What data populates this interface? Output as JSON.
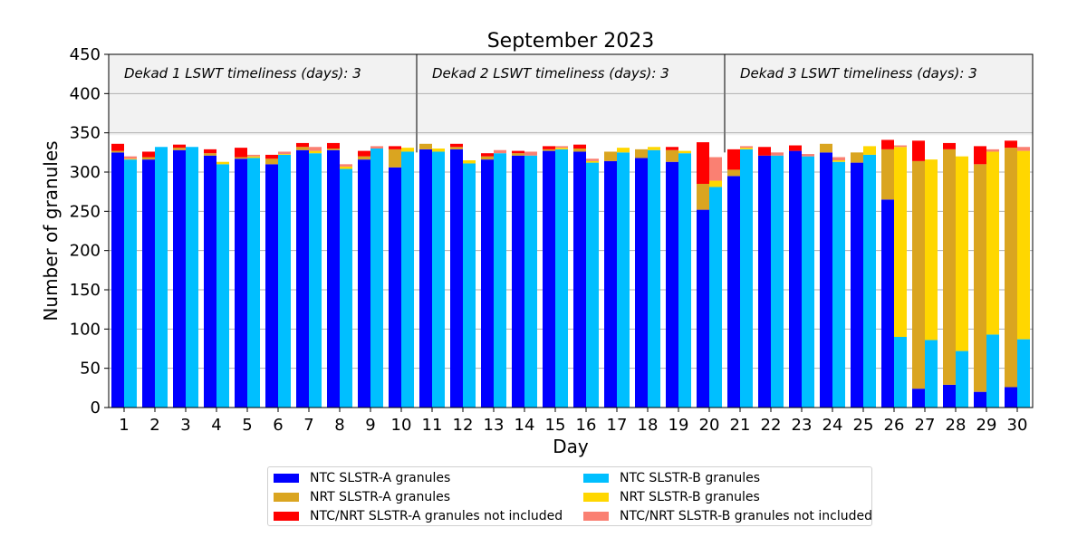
{
  "chart_data": {
    "type": "bar",
    "title": "September 2023",
    "xlabel": "Day",
    "ylabel": "Number of granules",
    "ylim": [
      0,
      450
    ],
    "yticks": [
      "0",
      "50",
      "100",
      "150",
      "200",
      "250",
      "300",
      "350",
      "400",
      "450"
    ],
    "categories": [
      "1",
      "2",
      "3",
      "4",
      "5",
      "6",
      "7",
      "8",
      "9",
      "10",
      "11",
      "12",
      "13",
      "14",
      "15",
      "16",
      "17",
      "18",
      "19",
      "20",
      "21",
      "22",
      "23",
      "24",
      "25",
      "26",
      "27",
      "28",
      "29",
      "30"
    ],
    "grid": "horizontal",
    "legend_position": "bottom",
    "dekads": [
      {
        "label": "Dekad 1 LSWT timeliness (days): 3",
        "days": [
          1,
          10
        ]
      },
      {
        "label": "Dekad 2 LSWT timeliness (days): 3",
        "days": [
          11,
          20
        ]
      },
      {
        "label": "Dekad 3 LSWT timeliness (days): 3",
        "days": [
          21,
          30
        ]
      }
    ],
    "shaded_band": [
      347,
      450
    ],
    "series": [
      {
        "name": "NTC SLSTR-A granules",
        "color": "#0000ff",
        "sensor": "A",
        "stack": 0,
        "values": [
          325,
          316,
          328,
          321,
          317,
          310,
          328,
          328,
          316,
          306,
          329,
          329,
          316,
          321,
          327,
          326,
          314,
          318,
          313,
          252,
          295,
          321,
          327,
          325,
          312,
          265,
          24,
          29,
          20,
          26
        ]
      },
      {
        "name": "NRT SLSTR-A granules",
        "color": "#daa520",
        "sensor": "A",
        "stack": 1,
        "values": [
          2,
          3,
          3,
          3,
          2,
          7,
          4,
          2,
          4,
          23,
          7,
          3,
          4,
          3,
          2,
          4,
          12,
          11,
          15,
          33,
          8,
          0,
          0,
          11,
          13,
          64,
          290,
          300,
          290,
          305
        ]
      },
      {
        "name": "NTC/NRT SLSTR-A granules not included",
        "color": "#ff0000",
        "sensor": "A",
        "stack": 2,
        "values": [
          9,
          7,
          4,
          5,
          12,
          5,
          5,
          7,
          7,
          4,
          0,
          4,
          4,
          3,
          4,
          5,
          0,
          0,
          4,
          53,
          26,
          11,
          7,
          0,
          0,
          12,
          26,
          8,
          23,
          9
        ]
      },
      {
        "name": "NTC SLSTR-B granules",
        "color": "#00bfff",
        "sensor": "B",
        "stack": 0,
        "values": [
          316,
          332,
          332,
          310,
          318,
          322,
          324,
          304,
          330,
          326,
          326,
          311,
          324,
          321,
          329,
          312,
          325,
          328,
          324,
          281,
          329,
          321,
          320,
          313,
          322,
          90,
          86,
          72,
          93,
          87
        ]
      },
      {
        "name": "NRT SLSTR-B granules",
        "color": "#ffd700",
        "sensor": "B",
        "stack": 1,
        "values": [
          1,
          0,
          0,
          3,
          2,
          1,
          3,
          3,
          0,
          5,
          4,
          4,
          0,
          0,
          2,
          2,
          6,
          4,
          3,
          8,
          2,
          0,
          0,
          2,
          11,
          242,
          230,
          248,
          233,
          240
        ]
      },
      {
        "name": "NTC/NRT SLSTR-B granules not included",
        "color": "#fa8072",
        "sensor": "B",
        "stack": 2,
        "values": [
          3,
          0,
          0,
          0,
          2,
          3,
          5,
          3,
          3,
          0,
          0,
          0,
          4,
          5,
          2,
          3,
          0,
          0,
          0,
          30,
          2,
          4,
          3,
          4,
          0,
          2,
          0,
          0,
          3,
          5
        ]
      }
    ]
  }
}
